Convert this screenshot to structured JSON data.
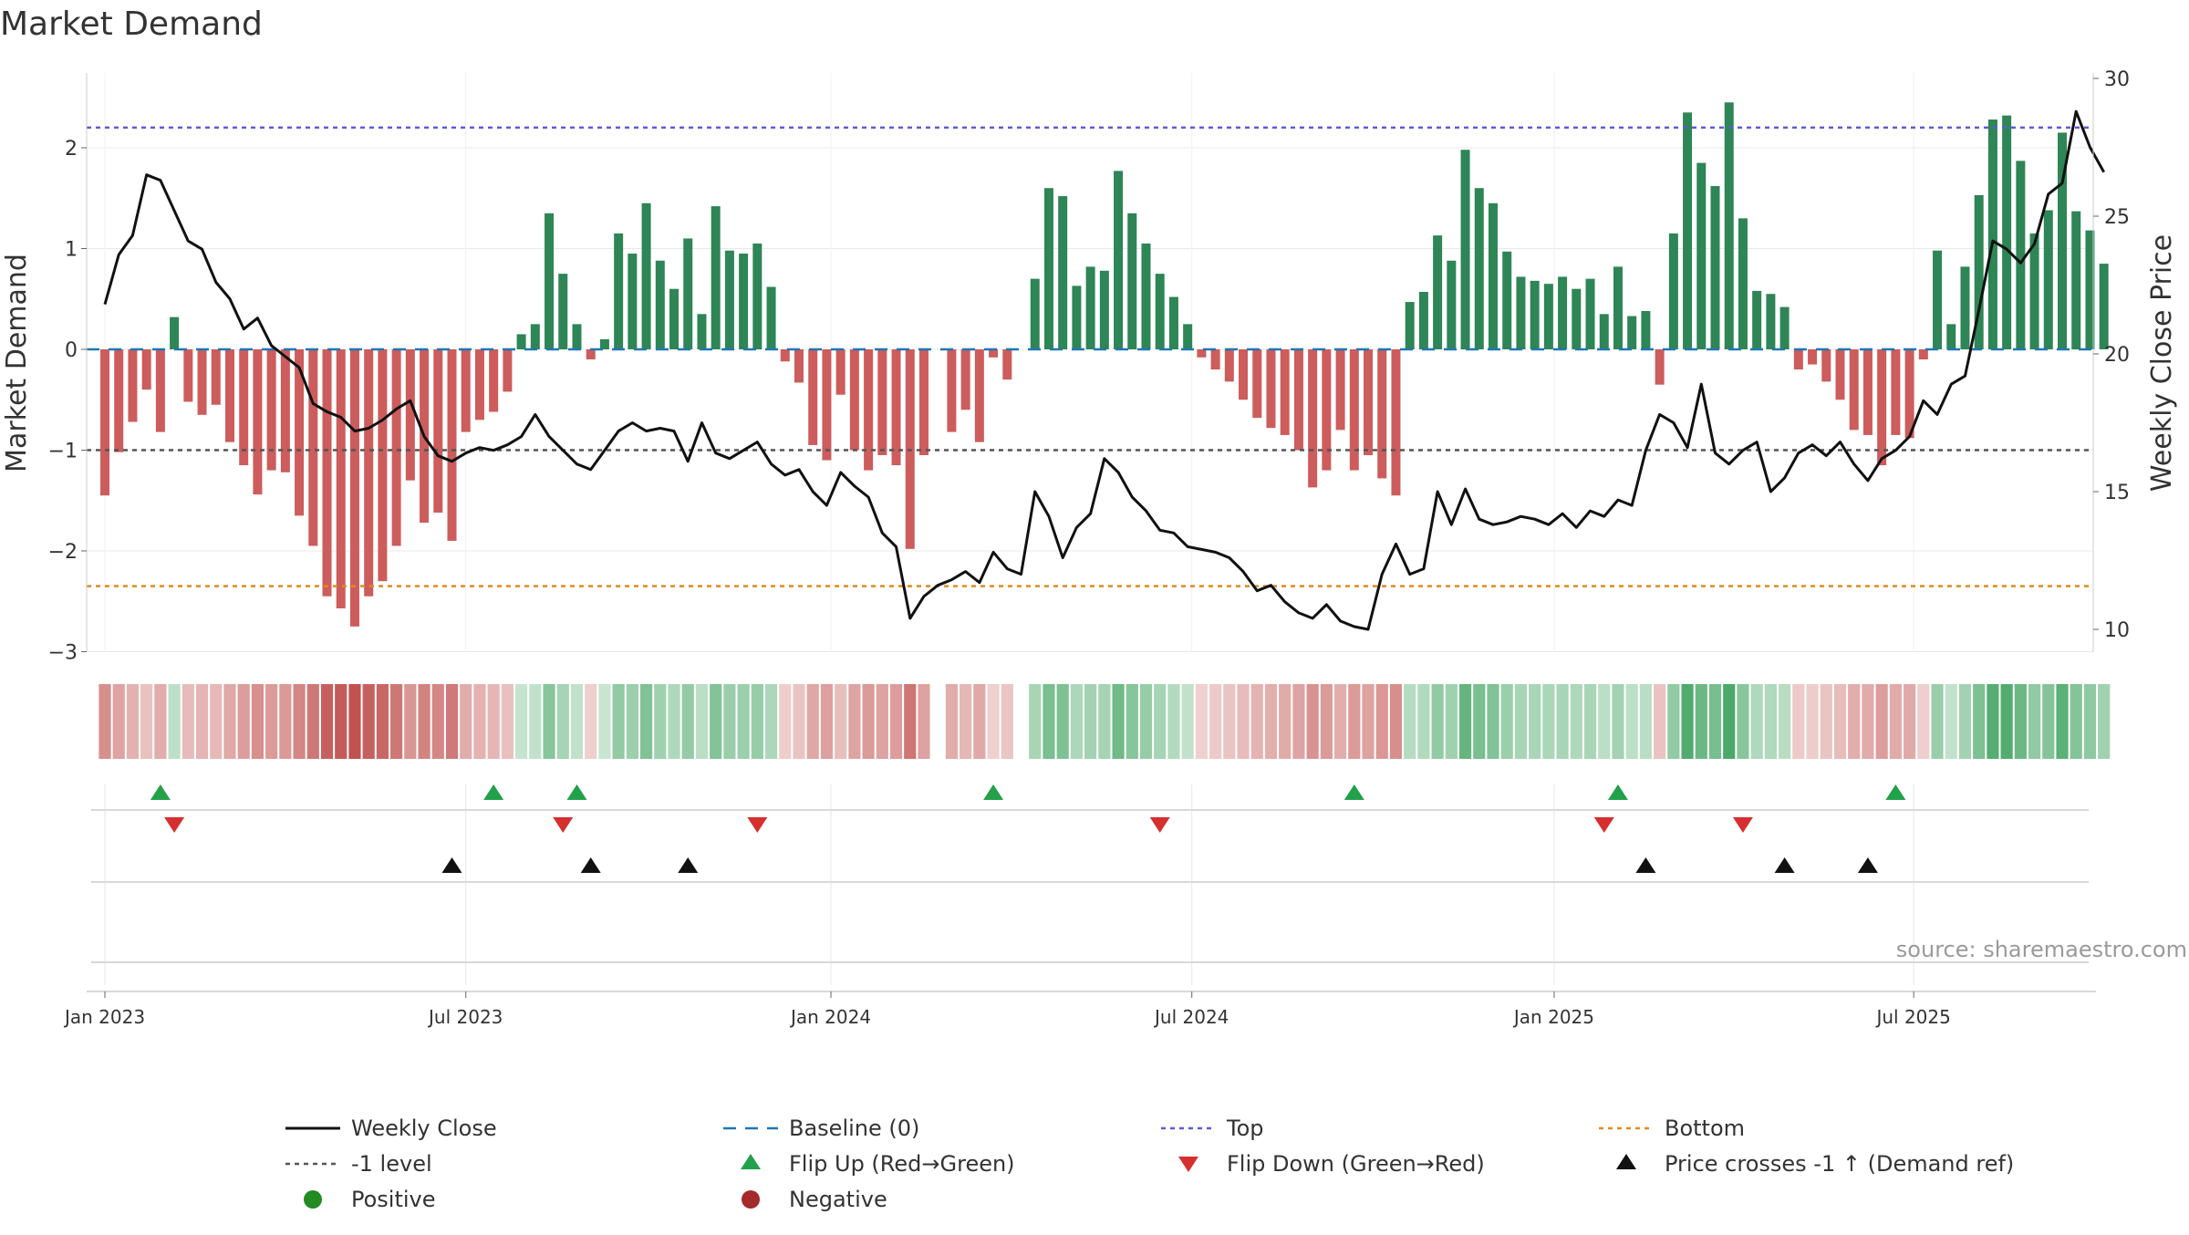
{
  "chart_data": {
    "type": "bar",
    "title": "Market Demand",
    "ylabel": "Market Demand",
    "y2label": "Weekly Close Price",
    "ylim": [
      -3.2,
      2.7
    ],
    "y2lim": [
      8.9,
      30.2
    ],
    "yticks": [
      2,
      1,
      0,
      -1,
      -2,
      -3
    ],
    "ytick_labels": [
      "2",
      "1",
      "0",
      "−1",
      "−2",
      "−3"
    ],
    "y2ticks": [
      30,
      25,
      20,
      15,
      10
    ],
    "y2tick_labels": [
      "30",
      "25",
      "20",
      "15",
      "10"
    ],
    "x_range_weeks": [
      -1,
      145
    ],
    "xticks": [
      {
        "label": "Jan 2023",
        "week": 0
      },
      {
        "label": "Jul 2023",
        "week": 26
      },
      {
        "label": "Jan 2024",
        "week": 52.3
      },
      {
        "label": "Jul 2024",
        "week": 78.3
      },
      {
        "label": "Jan 2025",
        "week": 104.4
      },
      {
        "label": "Jul 2025",
        "week": 130.3
      }
    ],
    "reference_lines": [
      {
        "name": "Top",
        "value": 2.2,
        "color": "#5b5bd6"
      },
      {
        "name": "-1 level",
        "value": -1.0,
        "color": "#555555"
      },
      {
        "name": "Bottom",
        "value": -2.35,
        "color": "#e08a1e"
      },
      {
        "name": "Baseline (0)",
        "value": 0,
        "color": "#1f77b4"
      }
    ],
    "demand_values": [
      -1.45,
      -1.02,
      -0.72,
      -0.4,
      -0.82,
      0.32,
      -0.52,
      -0.65,
      -0.55,
      -0.92,
      -1.15,
      -1.44,
      -1.2,
      -1.22,
      -1.65,
      -1.95,
      -2.45,
      -2.57,
      -2.75,
      -2.45,
      -2.3,
      -1.95,
      -1.3,
      -1.72,
      -1.62,
      -1.9,
      -0.82,
      -0.7,
      -0.62,
      -0.42,
      0.15,
      0.25,
      1.35,
      0.75,
      0.25,
      -0.1,
      0.1,
      1.15,
      0.95,
      1.45,
      0.88,
      0.6,
      1.1,
      0.35,
      1.42,
      0.98,
      0.95,
      1.05,
      0.62,
      -0.12,
      -0.33,
      -0.95,
      -1.1,
      -0.45,
      -1.0,
      -1.2,
      -1.05,
      -1.15,
      -1.98,
      -1.05,
      0,
      -0.82,
      -0.6,
      -0.92,
      -0.08,
      -0.3,
      0,
      0.7,
      1.6,
      1.52,
      0.63,
      0.82,
      0.78,
      1.77,
      1.35,
      1.05,
      0.75,
      0.52,
      0.25,
      -0.08,
      -0.2,
      -0.32,
      -0.5,
      -0.68,
      -0.78,
      -0.85,
      -1.0,
      -1.37,
      -1.2,
      -0.8,
      -1.2,
      -1.05,
      -1.28,
      -1.45,
      0.47,
      0.57,
      1.13,
      0.88,
      1.98,
      1.6,
      1.45,
      0.97,
      0.72,
      0.68,
      0.65,
      0.72,
      0.6,
      0.7,
      0.35,
      0.82,
      0.33,
      0.38,
      -0.35,
      1.15,
      2.35,
      1.85,
      1.62,
      2.45,
      1.3,
      0.58,
      0.55,
      0.42,
      -0.2,
      -0.15,
      -0.32,
      -0.5,
      -0.8,
      -0.85,
      -1.15,
      -0.85,
      -0.88,
      -0.1,
      0.98,
      0.25,
      0.82,
      1.53,
      2.28,
      2.32,
      1.87,
      1.15,
      1.38,
      2.15,
      1.37,
      1.18,
      0.85
    ],
    "weekly_close": [
      21.8,
      23.6,
      24.3,
      26.5,
      26.3,
      25.2,
      24.1,
      23.8,
      22.6,
      22.0,
      20.9,
      21.3,
      20.3,
      19.9,
      19.5,
      18.2,
      17.9,
      17.7,
      17.2,
      17.3,
      17.6,
      18.0,
      18.3,
      17.0,
      16.3,
      16.1,
      16.4,
      16.6,
      16.5,
      16.7,
      17.0,
      17.8,
      17.0,
      16.5,
      16.0,
      15.8,
      16.5,
      17.2,
      17.5,
      17.2,
      17.3,
      17.2,
      16.1,
      17.5,
      16.4,
      16.2,
      16.5,
      16.8,
      16.0,
      15.6,
      15.8,
      15.0,
      14.5,
      15.7,
      15.2,
      14.8,
      13.5,
      13.0,
      10.4,
      11.2,
      11.6,
      11.8,
      12.1,
      11.7,
      12.8,
      12.2,
      12.0,
      15.0,
      14.1,
      12.6,
      13.7,
      14.2,
      16.2,
      15.7,
      14.8,
      14.3,
      13.6,
      13.5,
      13.0,
      12.9,
      12.8,
      12.6,
      12.1,
      11.4,
      11.6,
      11.0,
      10.6,
      10.4,
      10.9,
      10.3,
      10.1,
      10.0,
      12.0,
      13.1,
      12.0,
      12.2,
      15.0,
      13.8,
      15.1,
      14.0,
      13.8,
      13.9,
      14.1,
      14.0,
      13.8,
      14.2,
      13.7,
      14.3,
      14.1,
      14.7,
      14.5,
      16.5,
      17.8,
      17.5,
      16.6,
      18.9,
      16.4,
      16.0,
      16.5,
      16.8,
      15.0,
      15.5,
      16.4,
      16.7,
      16.3,
      16.8,
      16.0,
      15.4,
      16.2,
      16.5,
      17.0,
      18.3,
      17.8,
      18.9,
      19.2,
      21.6,
      24.1,
      23.8,
      23.3,
      24.0,
      25.8,
      26.2,
      28.8,
      27.5,
      26.6
    ],
    "flip_up_weeks": [
      4,
      28,
      34,
      64,
      90,
      109,
      129
    ],
    "flip_down_weeks": [
      5,
      33,
      47,
      76,
      108,
      118
    ],
    "price_cross_weeks": [
      25,
      35,
      42,
      111,
      121,
      127
    ],
    "legend": [
      "Weekly Close",
      "Baseline (0)",
      "Top",
      "Bottom",
      "-1 level",
      "Flip Up (Red→Green)",
      "Flip Down (Green→Red)",
      "Price crosses -1 ↑ (Demand ref)",
      "Positive",
      "Negative"
    ],
    "source": "source: sharemaestro.com"
  },
  "colors": {
    "positive": "#2e8555",
    "negative": "#cd5c5c",
    "price_line": "#111111",
    "flip_up": "#22a04a",
    "flip_down": "#d62f2f",
    "price_cross": "#111111",
    "positive_legend": "#228b22",
    "negative_legend": "#a52a2a",
    "grid": "#e8e8e8"
  }
}
